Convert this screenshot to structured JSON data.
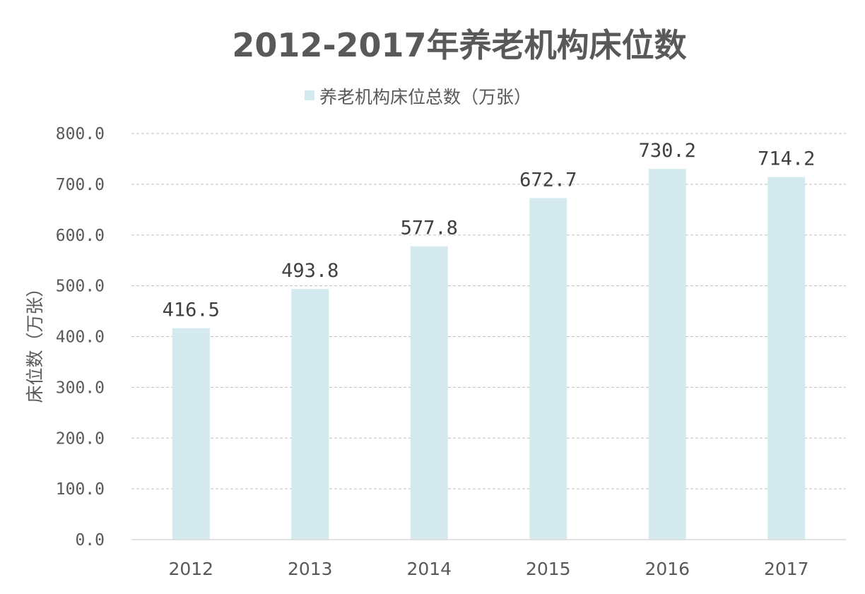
{
  "chart_data": {
    "type": "bar",
    "title": "2012-2017年养老机构床位数",
    "ylabel": "床位数（万张）",
    "xlabel": "",
    "categories": [
      "2012",
      "2013",
      "2014",
      "2015",
      "2016",
      "2017"
    ],
    "series": [
      {
        "name": "养老机构床位总数（万张）",
        "values": [
          416.5,
          493.8,
          577.8,
          672.7,
          730.2,
          714.2
        ],
        "labels": [
          "416.5",
          "493.8",
          "577.8",
          "672.7",
          "730.2",
          "714.2"
        ],
        "color": "#d4eaee"
      }
    ],
    "ylim": [
      0,
      800
    ],
    "yticks": [
      "0.0",
      "100.0",
      "200.0",
      "300.0",
      "400.0",
      "500.0",
      "600.0",
      "700.0",
      "800.0"
    ],
    "grid": true,
    "gridStyle": "dashed",
    "legend": "top-center"
  }
}
